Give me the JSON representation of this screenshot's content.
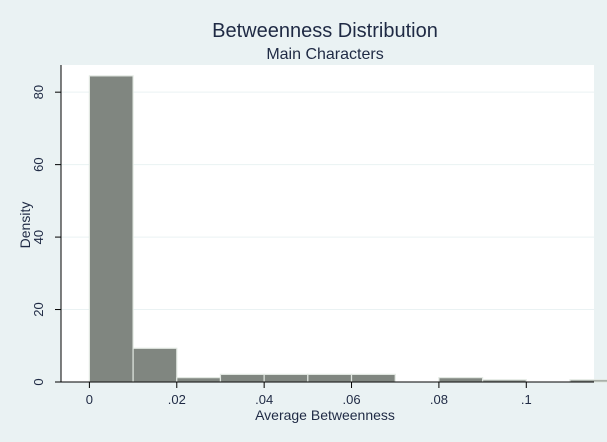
{
  "chart_data": {
    "type": "bar",
    "title": "Betweenness Distribution",
    "subtitle": "Main Characters",
    "xlabel": "Average Betweenness",
    "ylabel": "Density",
    "xlim": [
      -0.0065,
      0.1155
    ],
    "ylim": [
      0,
      87.5
    ],
    "x_ticks": [
      {
        "value": 0,
        "label": "0"
      },
      {
        "value": 0.02,
        "label": ".02"
      },
      {
        "value": 0.04,
        "label": ".04"
      },
      {
        "value": 0.06,
        "label": ".06"
      },
      {
        "value": 0.08,
        "label": ".08"
      },
      {
        "value": 0.1,
        "label": ".1"
      }
    ],
    "y_ticks": [
      {
        "value": 0,
        "label": "0"
      },
      {
        "value": 20,
        "label": "20"
      },
      {
        "value": 40,
        "label": "40"
      },
      {
        "value": 60,
        "label": "60"
      },
      {
        "value": 80,
        "label": "80"
      }
    ],
    "bins": [
      {
        "start": 0.0,
        "end": 0.01,
        "density": 84.5
      },
      {
        "start": 0.01,
        "end": 0.02,
        "density": 9.3
      },
      {
        "start": 0.02,
        "end": 0.03,
        "density": 1.2
      },
      {
        "start": 0.03,
        "end": 0.04,
        "density": 2.1
      },
      {
        "start": 0.04,
        "end": 0.05,
        "density": 2.1
      },
      {
        "start": 0.05,
        "end": 0.06,
        "density": 2.1
      },
      {
        "start": 0.06,
        "end": 0.07,
        "density": 2.1
      },
      {
        "start": 0.07,
        "end": 0.08,
        "density": 0
      },
      {
        "start": 0.08,
        "end": 0.09,
        "density": 1.2
      },
      {
        "start": 0.09,
        "end": 0.1,
        "density": 0.6
      },
      {
        "start": 0.1,
        "end": 0.11,
        "density": 0
      },
      {
        "start": 0.11,
        "end": 0.12,
        "density": 0.6
      }
    ],
    "grid": true,
    "colors": {
      "bar_fill": "#808680",
      "bar_stroke": "#e2e8e2",
      "plot_background": "#ffffff",
      "outer_background": "#eaf2f3",
      "grid": "#eaf2f3",
      "text": "#1f2a44"
    }
  }
}
